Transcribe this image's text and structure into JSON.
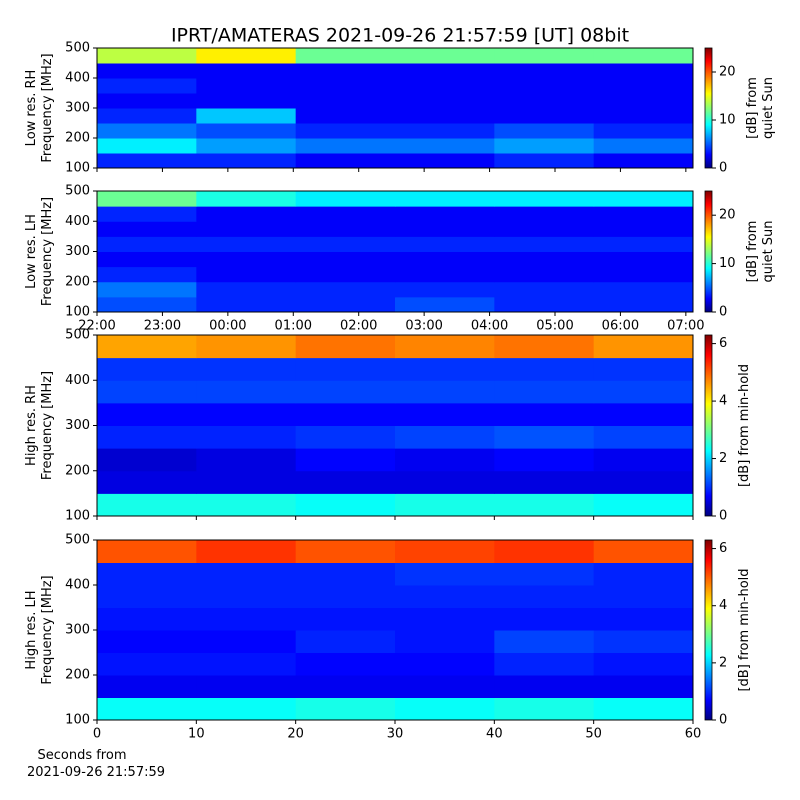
{
  "chart_data": [
    {
      "type": "heatmap",
      "title": "IPRT/AMATERAS 2021-09-26 21:57:59 [UT]   08bit",
      "ylabel": [
        "Low res. RH",
        "Frequency [MHz]"
      ],
      "ylim": [
        100,
        500
      ],
      "yticks": [
        100,
        200,
        300,
        400,
        500
      ],
      "colormap": "jet",
      "clim": [
        0,
        25
      ],
      "cticks": [
        0,
        10,
        20
      ],
      "clabel": [
        "[dB] from",
        "quiet Sun"
      ],
      "z": [
        [
          4,
          4,
          3,
          3,
          4,
          3
        ],
        [
          9,
          7,
          6,
          6,
          7,
          6
        ],
        [
          6,
          5,
          4,
          4,
          5,
          4
        ],
        [
          4,
          8,
          3,
          3,
          3,
          3
        ],
        [
          3,
          3,
          3,
          3,
          3,
          3
        ],
        [
          4,
          3,
          3,
          3,
          3,
          3
        ],
        [
          3,
          3,
          3,
          3,
          3,
          3
        ],
        [
          14,
          16,
          12,
          12,
          12,
          12
        ]
      ]
    },
    {
      "type": "heatmap",
      "ylabel": [
        "Low res. LH",
        "Frequency [MHz]"
      ],
      "ylim": [
        100,
        500
      ],
      "yticks": [
        100,
        200,
        300,
        400,
        500
      ],
      "xticks": [
        "22:00",
        "23:00",
        "00:00",
        "01:00",
        "02:00",
        "03:00",
        "04:00",
        "05:00",
        "06:00",
        "07:00"
      ],
      "colormap": "jet",
      "clim": [
        0,
        25
      ],
      "cticks": [
        0,
        10,
        20
      ],
      "clabel": [
        "[dB] from",
        "quiet Sun"
      ],
      "z": [
        [
          5,
          4,
          4,
          5,
          4,
          4
        ],
        [
          6,
          4,
          4,
          4,
          4,
          4
        ],
        [
          4,
          3,
          3,
          3,
          3,
          3
        ],
        [
          3,
          3,
          3,
          3,
          3,
          3
        ],
        [
          4,
          4,
          4,
          4,
          4,
          4
        ],
        [
          3,
          3,
          3,
          3,
          3,
          3
        ],
        [
          4,
          3,
          3,
          3,
          3,
          3
        ],
        [
          12,
          10,
          9,
          9,
          9,
          9
        ]
      ]
    },
    {
      "type": "heatmap",
      "ylabel": [
        "High res. RH",
        "Frequency [MHz]"
      ],
      "ylim": [
        100,
        500
      ],
      "yticks": [
        100,
        200,
        300,
        400,
        500
      ],
      "colormap": "jet",
      "clim": [
        0,
        6.3
      ],
      "cticks": [
        0,
        2,
        4,
        6
      ],
      "clabel": [
        "[dB] from min-hold"
      ],
      "z": [
        [
          2.5,
          2.5,
          2.4,
          2.5,
          2.5,
          2.4
        ],
        [
          0.6,
          0.6,
          0.6,
          0.6,
          0.6,
          0.6
        ],
        [
          0.5,
          0.6,
          0.8,
          0.7,
          0.8,
          0.7
        ],
        [
          1.0,
          1.0,
          1.1,
          1.2,
          1.3,
          1.2
        ],
        [
          0.8,
          0.8,
          0.8,
          0.8,
          0.8,
          0.8
        ],
        [
          1.2,
          1.2,
          1.2,
          1.2,
          1.2,
          1.2
        ],
        [
          1.1,
          1.1,
          1.1,
          1.1,
          1.1,
          1.1
        ],
        [
          4.5,
          4.6,
          4.8,
          4.7,
          4.8,
          4.6
        ]
      ]
    },
    {
      "type": "heatmap",
      "ylabel": [
        "High res. LH",
        "Frequency [MHz]"
      ],
      "ylim": [
        100,
        500
      ],
      "yticks": [
        100,
        200,
        300,
        400,
        500
      ],
      "xlim": [
        0,
        60
      ],
      "xticks": [
        0,
        10,
        20,
        30,
        40,
        50,
        60
      ],
      "xlabel": [
        "Seconds from",
        "2021-09-26 21:57:59"
      ],
      "colormap": "jet",
      "clim": [
        0,
        6.3
      ],
      "cticks": [
        0,
        2,
        4,
        6
      ],
      "clabel": [
        "[dB] from min-hold"
      ],
      "z": [
        [
          2.4,
          2.4,
          2.5,
          2.4,
          2.5,
          2.4
        ],
        [
          0.7,
          0.7,
          0.7,
          0.7,
          0.7,
          0.7
        ],
        [
          0.9,
          0.9,
          0.8,
          0.8,
          1.0,
          0.9
        ],
        [
          0.8,
          0.8,
          1.0,
          0.9,
          1.2,
          1.1
        ],
        [
          0.9,
          0.9,
          0.9,
          0.9,
          0.9,
          0.9
        ],
        [
          1.0,
          1.0,
          1.0,
          1.0,
          1.0,
          1.0
        ],
        [
          1.0,
          1.0,
          1.0,
          1.1,
          1.1,
          1.0
        ],
        [
          5.0,
          5.2,
          5.0,
          5.1,
          5.2,
          5.0
        ]
      ]
    }
  ]
}
